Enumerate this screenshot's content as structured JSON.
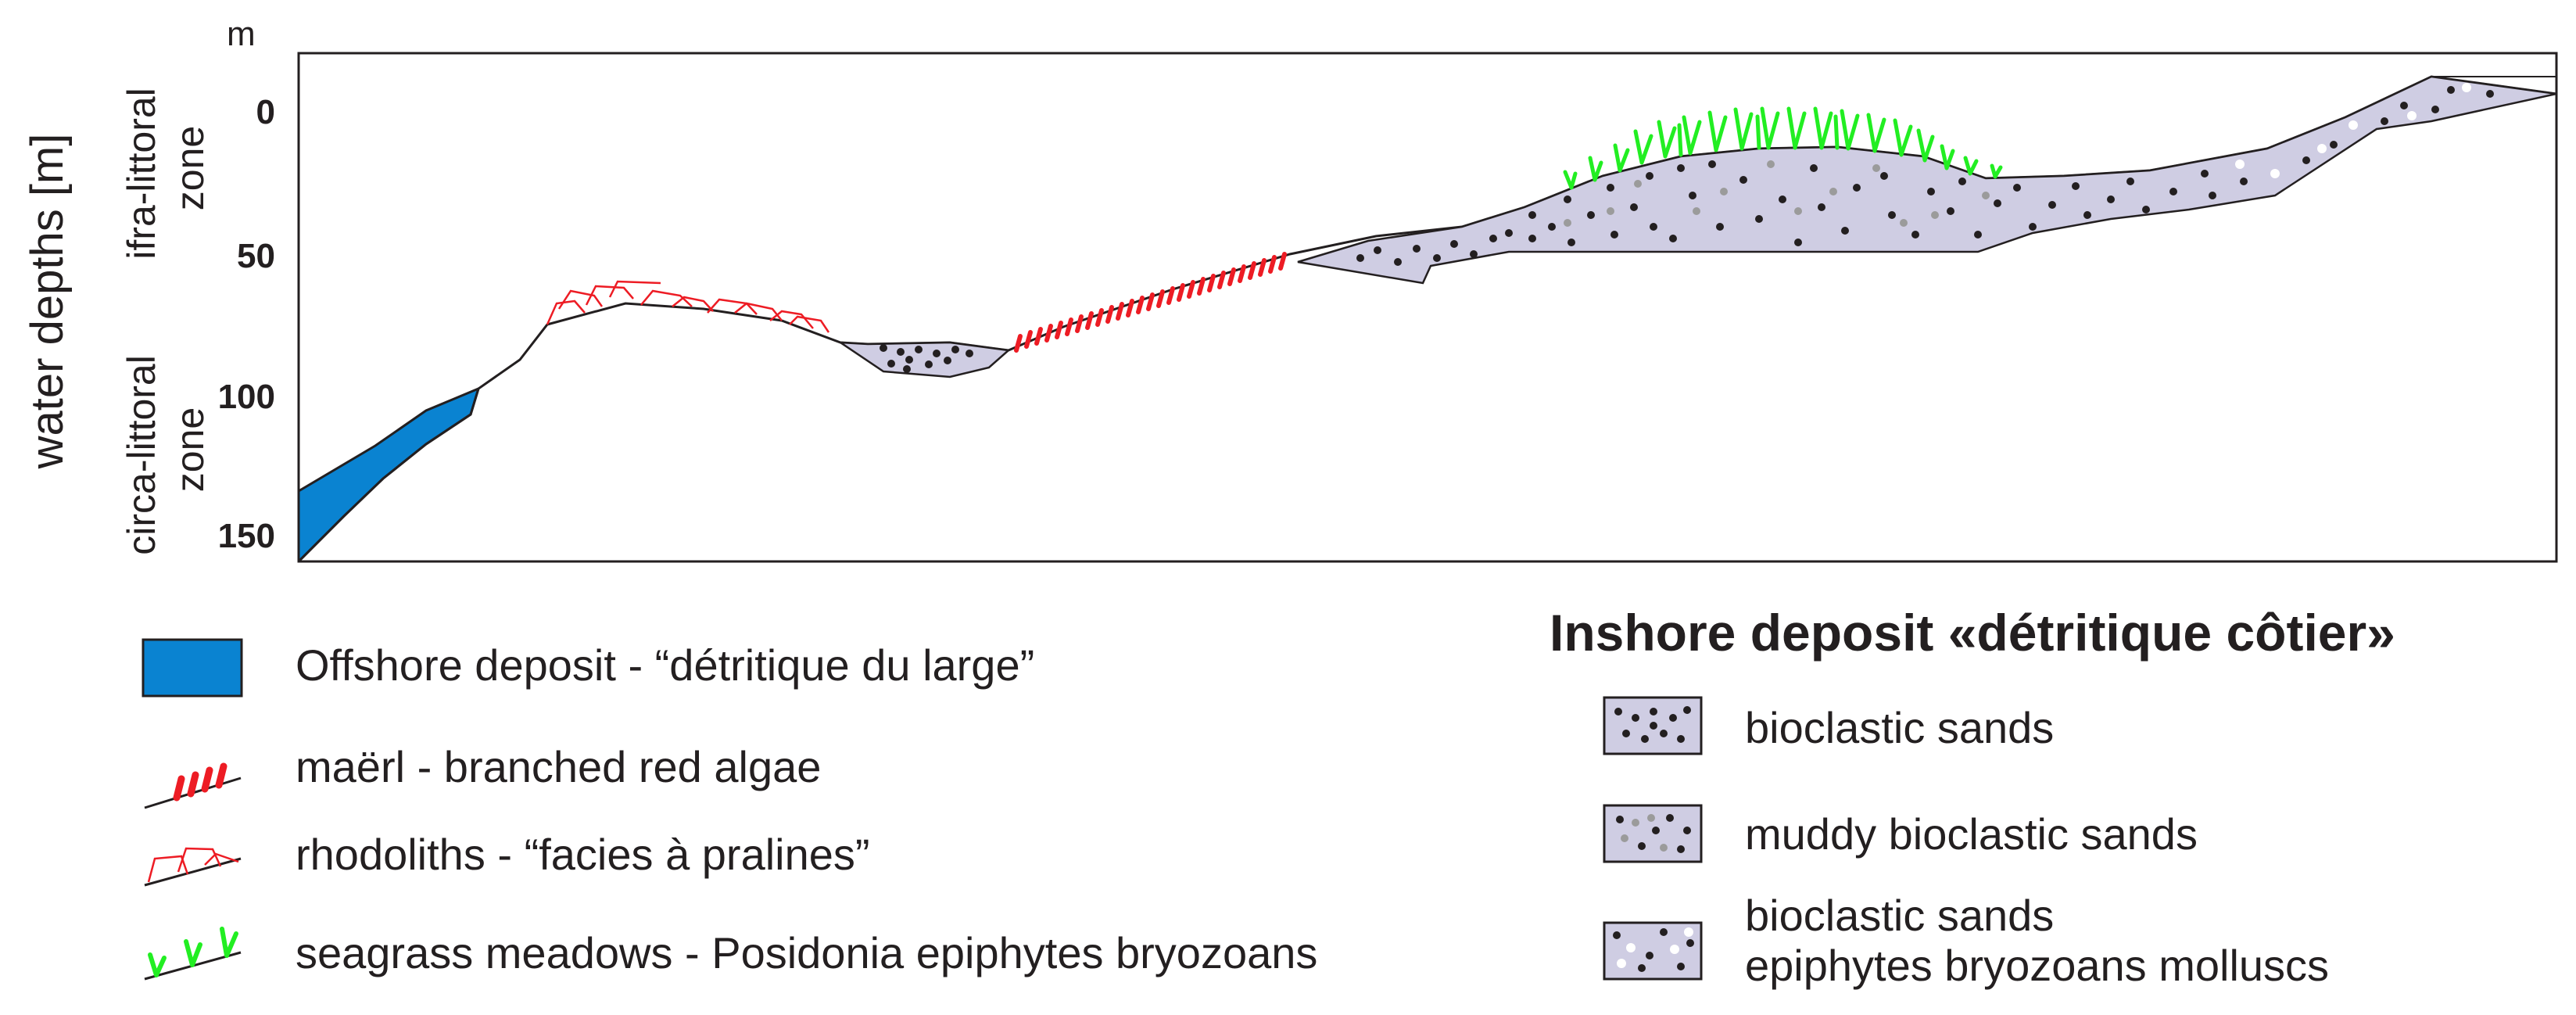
{
  "figure": {
    "axis_title": "water depths [m]",
    "unit": "m",
    "depth_ticks": [
      "0",
      "50",
      "100",
      "150"
    ],
    "zones": {
      "infra_littoral": [
        "ifra-littoral",
        "zone"
      ],
      "circa_littoral": [
        "circa-littoral",
        "zone"
      ]
    }
  },
  "legend_left": {
    "offshore": "Offshore deposit - “détritique du large”",
    "maerl": "maërl - branched red algae",
    "rhodoliths": "rhodoliths - “facies à pralines”",
    "seagrass": "seagrass meadows - Posidonia epiphytes bryozoans"
  },
  "legend_right": {
    "title": "Inshore deposit «détritique côtier»",
    "bioclastic": "bioclastic sands",
    "muddy": "muddy bioclastic sands",
    "epiphytes": [
      "bioclastic sands",
      "epiphytes bryozoans molluscs"
    ]
  },
  "colors": {
    "offshore_fill": "#0a83d1",
    "sand_fill": "#cfcde3",
    "maerl": "#ed1c24",
    "rhodolith": "#ed1c24",
    "seagrass": "#22ee22",
    "grain_dark": "#231f20",
    "grain_mud": "#9b9b9b",
    "grain_light": "#ffffff"
  },
  "icons": [
    "offshore-swatch-icon",
    "maerl-icon",
    "rhodolith-icon",
    "seagrass-icon",
    "bioclastic-sands-swatch-icon",
    "muddy-sands-swatch-icon",
    "epiphyte-sands-swatch-icon"
  ]
}
